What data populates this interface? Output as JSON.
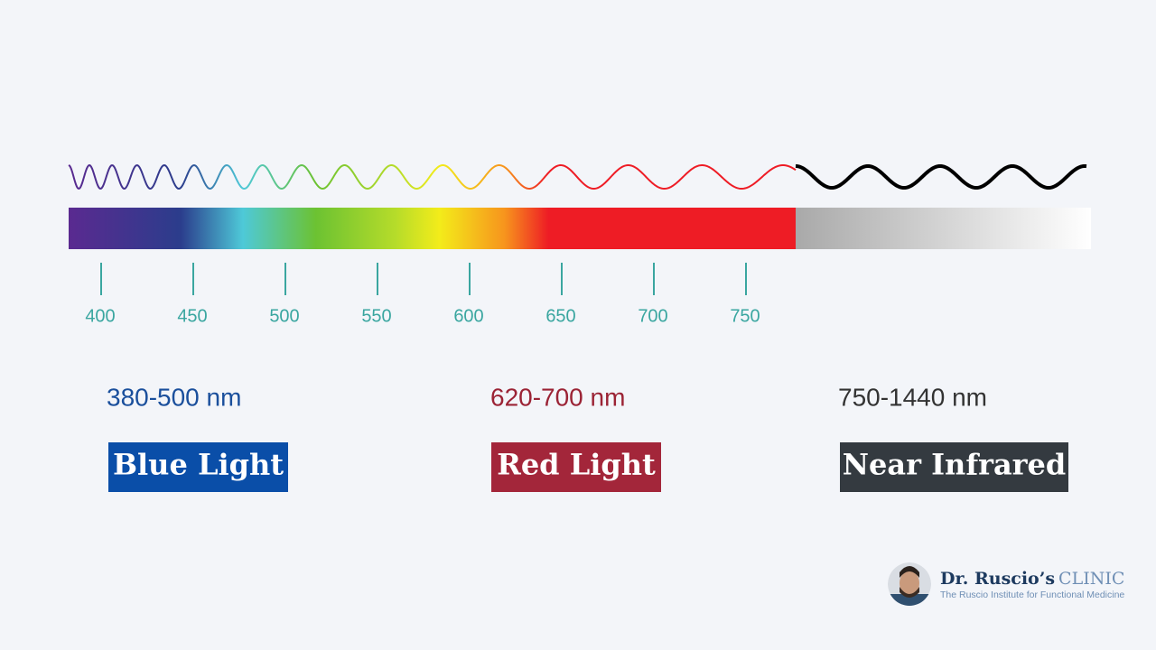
{
  "ticks": [
    400,
    450,
    500,
    550,
    600,
    650,
    700,
    750
  ],
  "sections": [
    {
      "range": "380-500 nm",
      "label": "Blue Light"
    },
    {
      "range": "620-700 nm",
      "label": "Red Light"
    },
    {
      "range": "750-1440 nm",
      "label": "Near Infrared"
    }
  ],
  "logo": {
    "name": "Dr. Ruscio’s",
    "suffix": "CLINIC",
    "tagline": "The Ruscio Institute for Functional Medicine"
  }
}
